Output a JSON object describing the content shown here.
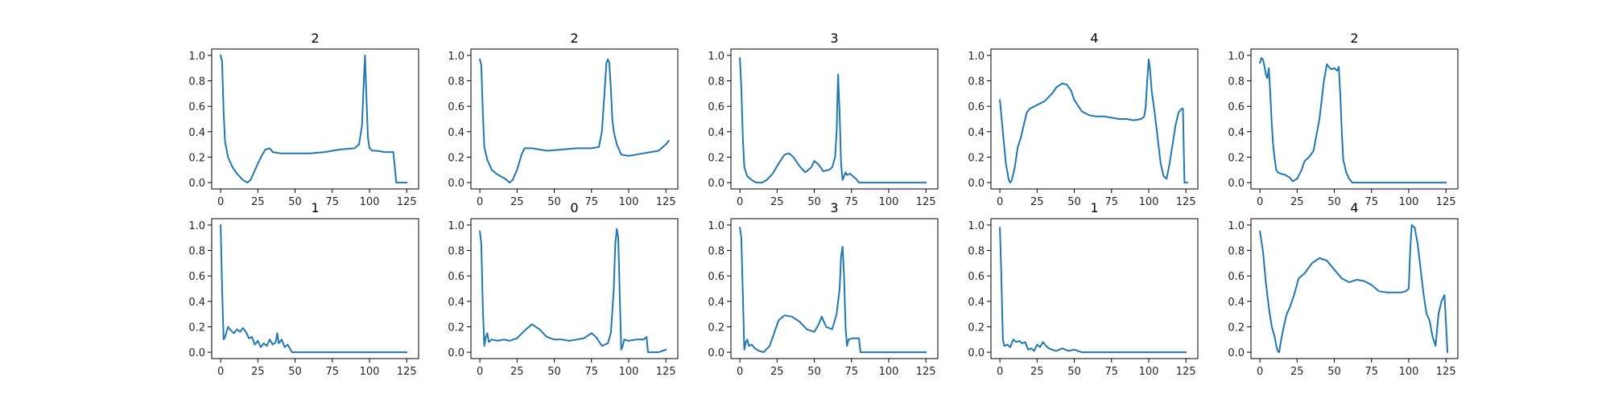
{
  "colors": {
    "line": "#1f77b4",
    "axes": "#000000",
    "background": "#ffffff"
  },
  "chart_data": [
    {
      "type": "line",
      "title": "2",
      "xlim": [
        -6,
        133
      ],
      "ylim": [
        -0.05,
        1.05
      ],
      "grid": false,
      "xticks": [
        0,
        25,
        50,
        75,
        100,
        125
      ],
      "yticks": [
        0.0,
        0.2,
        0.4,
        0.6,
        0.8,
        1.0
      ],
      "series": [
        {
          "x": [
            0,
            1,
            2,
            3,
            5,
            8,
            11,
            15,
            18,
            20,
            22,
            25,
            28,
            30,
            33,
            35,
            40,
            50,
            60,
            70,
            80,
            90,
            93,
            95,
            96,
            97,
            98,
            99,
            100,
            102,
            105,
            110,
            114,
            116,
            118,
            125
          ],
          "y": [
            1.0,
            0.95,
            0.55,
            0.32,
            0.2,
            0.12,
            0.07,
            0.02,
            0.0,
            0.02,
            0.07,
            0.15,
            0.22,
            0.26,
            0.27,
            0.24,
            0.23,
            0.23,
            0.23,
            0.24,
            0.26,
            0.27,
            0.3,
            0.45,
            0.75,
            1.0,
            0.65,
            0.35,
            0.27,
            0.25,
            0.25,
            0.24,
            0.24,
            0.24,
            0.0,
            0.0
          ]
        }
      ]
    },
    {
      "type": "line",
      "title": "2",
      "xlim": [
        -6,
        133
      ],
      "ylim": [
        -0.05,
        1.05
      ],
      "grid": false,
      "xticks": [
        0,
        25,
        50,
        75,
        100,
        125
      ],
      "yticks": [
        0.0,
        0.2,
        0.4,
        0.6,
        0.8,
        1.0
      ],
      "series": [
        {
          "x": [
            0,
            1,
            2,
            3,
            5,
            8,
            11,
            14,
            17,
            20,
            22,
            25,
            28,
            30,
            35,
            45,
            55,
            65,
            75,
            80,
            82,
            84,
            85,
            86,
            87,
            88,
            89,
            90,
            92,
            95,
            100,
            105,
            110,
            115,
            120,
            125,
            127
          ],
          "y": [
            0.97,
            0.92,
            0.55,
            0.28,
            0.18,
            0.1,
            0.07,
            0.05,
            0.03,
            0.0,
            0.02,
            0.1,
            0.22,
            0.27,
            0.27,
            0.25,
            0.26,
            0.27,
            0.27,
            0.28,
            0.4,
            0.75,
            0.94,
            0.97,
            0.94,
            0.75,
            0.5,
            0.4,
            0.3,
            0.22,
            0.21,
            0.22,
            0.23,
            0.24,
            0.25,
            0.3,
            0.33
          ]
        }
      ]
    },
    {
      "type": "line",
      "title": "3",
      "xlim": [
        -6,
        133
      ],
      "ylim": [
        -0.05,
        1.05
      ],
      "grid": false,
      "xticks": [
        0,
        25,
        50,
        75,
        100,
        125
      ],
      "yticks": [
        0.0,
        0.2,
        0.4,
        0.6,
        0.8,
        1.0
      ],
      "series": [
        {
          "x": [
            0,
            1,
            2,
            3,
            5,
            8,
            11,
            15,
            18,
            22,
            26,
            30,
            33,
            36,
            40,
            44,
            48,
            50,
            53,
            56,
            60,
            62,
            64,
            65,
            66,
            67,
            68,
            69,
            70,
            71,
            72,
            74,
            76,
            78,
            80,
            85,
            100,
            125
          ],
          "y": [
            0.98,
            0.75,
            0.35,
            0.12,
            0.05,
            0.02,
            0.0,
            0.0,
            0.02,
            0.07,
            0.15,
            0.22,
            0.23,
            0.2,
            0.13,
            0.08,
            0.12,
            0.17,
            0.14,
            0.09,
            0.1,
            0.12,
            0.2,
            0.4,
            0.85,
            0.55,
            0.15,
            0.02,
            0.05,
            0.08,
            0.06,
            0.07,
            0.05,
            0.03,
            0.0,
            0.0,
            0.0,
            0.0
          ]
        }
      ]
    },
    {
      "type": "line",
      "title": "4",
      "xlim": [
        -6,
        133
      ],
      "ylim": [
        -0.05,
        1.05
      ],
      "grid": false,
      "xticks": [
        0,
        25,
        50,
        75,
        100,
        125
      ],
      "yticks": [
        0.0,
        0.2,
        0.4,
        0.6,
        0.8,
        1.0
      ],
      "series": [
        {
          "x": [
            0,
            2,
            4,
            6,
            7,
            8,
            10,
            12,
            14,
            16,
            18,
            20,
            25,
            30,
            35,
            38,
            42,
            45,
            48,
            50,
            55,
            60,
            65,
            70,
            75,
            80,
            85,
            90,
            95,
            97,
            98,
            99,
            100,
            101,
            102,
            104,
            106,
            108,
            110,
            112,
            114,
            116,
            118,
            120,
            122,
            123,
            124,
            126
          ],
          "y": [
            0.65,
            0.4,
            0.15,
            0.02,
            0.0,
            0.02,
            0.12,
            0.28,
            0.35,
            0.45,
            0.55,
            0.58,
            0.61,
            0.64,
            0.7,
            0.75,
            0.78,
            0.77,
            0.72,
            0.65,
            0.56,
            0.53,
            0.52,
            0.52,
            0.51,
            0.5,
            0.5,
            0.49,
            0.5,
            0.52,
            0.6,
            0.8,
            0.97,
            0.88,
            0.72,
            0.55,
            0.35,
            0.15,
            0.05,
            0.03,
            0.15,
            0.3,
            0.45,
            0.55,
            0.58,
            0.58,
            0.0,
            0.0
          ]
        }
      ]
    },
    {
      "type": "line",
      "title": "2",
      "xlim": [
        -6,
        133
      ],
      "ylim": [
        -0.05,
        1.05
      ],
      "grid": false,
      "xticks": [
        0,
        25,
        50,
        75,
        100,
        125
      ],
      "yticks": [
        0.0,
        0.2,
        0.4,
        0.6,
        0.8,
        1.0
      ],
      "series": [
        {
          "x": [
            0,
            1,
            2,
            3,
            4,
            5,
            6,
            7,
            8,
            9,
            10,
            11,
            12,
            14,
            17,
            20,
            22,
            25,
            28,
            30,
            33,
            36,
            40,
            43,
            45,
            47,
            48,
            50,
            52,
            53,
            54,
            55,
            56,
            58,
            60,
            62,
            65,
            70,
            80,
            100,
            125
          ],
          "y": [
            0.94,
            0.98,
            0.97,
            0.92,
            0.85,
            0.82,
            0.9,
            0.7,
            0.45,
            0.28,
            0.18,
            0.1,
            0.08,
            0.07,
            0.06,
            0.04,
            0.01,
            0.03,
            0.1,
            0.17,
            0.2,
            0.25,
            0.5,
            0.8,
            0.93,
            0.9,
            0.89,
            0.9,
            0.88,
            0.91,
            0.7,
            0.4,
            0.18,
            0.08,
            0.03,
            0.0,
            0.0,
            0.0,
            0.0,
            0.0,
            0.0
          ]
        }
      ]
    },
    {
      "type": "line",
      "title": "1",
      "xlim": [
        -6,
        133
      ],
      "ylim": [
        -0.05,
        1.05
      ],
      "grid": false,
      "xticks": [
        0,
        25,
        50,
        75,
        100,
        125
      ],
      "yticks": [
        0.0,
        0.2,
        0.4,
        0.6,
        0.8,
        1.0
      ],
      "series": [
        {
          "x": [
            0,
            1,
            2,
            3,
            5,
            7,
            9,
            11,
            13,
            15,
            17,
            19,
            21,
            23,
            25,
            27,
            29,
            31,
            33,
            35,
            37,
            38,
            39,
            41,
            43,
            45,
            48,
            60,
            100,
            125
          ],
          "y": [
            1.0,
            0.5,
            0.1,
            0.12,
            0.2,
            0.17,
            0.15,
            0.18,
            0.16,
            0.19,
            0.16,
            0.11,
            0.12,
            0.06,
            0.09,
            0.04,
            0.07,
            0.05,
            0.1,
            0.06,
            0.08,
            0.15,
            0.07,
            0.1,
            0.04,
            0.06,
            0.0,
            0.0,
            0.0,
            0.0
          ]
        }
      ]
    },
    {
      "type": "line",
      "title": "0",
      "xlim": [
        -6,
        133
      ],
      "ylim": [
        -0.05,
        1.05
      ],
      "grid": false,
      "xticks": [
        0,
        25,
        50,
        75,
        100,
        125
      ],
      "yticks": [
        0.0,
        0.2,
        0.4,
        0.6,
        0.8,
        1.0
      ],
      "series": [
        {
          "x": [
            0,
            1,
            2,
            3,
            4,
            5,
            6,
            8,
            12,
            16,
            20,
            25,
            30,
            35,
            40,
            45,
            50,
            55,
            60,
            65,
            70,
            75,
            78,
            82,
            86,
            88,
            90,
            91,
            92,
            93,
            94,
            95,
            96,
            97,
            100,
            105,
            110,
            112,
            113,
            115,
            120,
            125
          ],
          "y": [
            0.95,
            0.85,
            0.35,
            0.05,
            0.12,
            0.15,
            0.08,
            0.1,
            0.09,
            0.1,
            0.09,
            0.11,
            0.17,
            0.22,
            0.18,
            0.12,
            0.1,
            0.1,
            0.09,
            0.1,
            0.11,
            0.15,
            0.12,
            0.05,
            0.07,
            0.15,
            0.5,
            0.85,
            0.97,
            0.9,
            0.45,
            0.02,
            0.05,
            0.1,
            0.09,
            0.1,
            0.1,
            0.12,
            0.0,
            0.0,
            0.0,
            0.02
          ]
        }
      ]
    },
    {
      "type": "line",
      "title": "3",
      "xlim": [
        -6,
        133
      ],
      "ylim": [
        -0.05,
        1.05
      ],
      "grid": false,
      "xticks": [
        0,
        25,
        50,
        75,
        100,
        125
      ],
      "yticks": [
        0.0,
        0.2,
        0.4,
        0.6,
        0.8,
        1.0
      ],
      "series": [
        {
          "x": [
            0,
            1,
            2,
            3,
            4,
            5,
            6,
            8,
            10,
            13,
            16,
            20,
            23,
            26,
            30,
            35,
            40,
            45,
            50,
            53,
            55,
            58,
            62,
            65,
            67,
            68,
            69,
            70,
            71,
            72,
            73,
            76,
            80,
            81,
            83,
            90,
            100,
            125
          ],
          "y": [
            0.98,
            0.9,
            0.45,
            0.02,
            0.08,
            0.1,
            0.05,
            0.06,
            0.03,
            0.01,
            0.0,
            0.05,
            0.15,
            0.25,
            0.29,
            0.28,
            0.24,
            0.18,
            0.16,
            0.22,
            0.28,
            0.2,
            0.18,
            0.3,
            0.5,
            0.75,
            0.83,
            0.6,
            0.2,
            0.05,
            0.1,
            0.11,
            0.11,
            0.0,
            0.0,
            0.0,
            0.0,
            0.0
          ]
        }
      ]
    },
    {
      "type": "line",
      "title": "1",
      "xlim": [
        -6,
        133
      ],
      "ylim": [
        -0.05,
        1.05
      ],
      "grid": false,
      "xticks": [
        0,
        25,
        50,
        75,
        100,
        125
      ],
      "yticks": [
        0.0,
        0.2,
        0.4,
        0.6,
        0.8,
        1.0
      ],
      "series": [
        {
          "x": [
            0,
            1,
            2,
            3,
            5,
            7,
            9,
            11,
            13,
            15,
            17,
            19,
            21,
            23,
            25,
            27,
            29,
            31,
            33,
            35,
            38,
            42,
            46,
            50,
            55,
            60,
            70,
            100,
            125
          ],
          "y": [
            0.98,
            0.6,
            0.1,
            0.05,
            0.06,
            0.04,
            0.1,
            0.08,
            0.09,
            0.07,
            0.08,
            0.02,
            0.03,
            0.01,
            0.06,
            0.04,
            0.08,
            0.05,
            0.03,
            0.02,
            0.01,
            0.03,
            0.01,
            0.02,
            0.0,
            0.0,
            0.0,
            0.0,
            0.0
          ]
        }
      ]
    },
    {
      "type": "line",
      "title": "4",
      "xlim": [
        -6,
        133
      ],
      "ylim": [
        -0.05,
        1.05
      ],
      "grid": false,
      "xticks": [
        0,
        25,
        50,
        75,
        100,
        125
      ],
      "yticks": [
        0.0,
        0.2,
        0.4,
        0.6,
        0.8,
        1.0
      ],
      "series": [
        {
          "x": [
            0,
            2,
            4,
            6,
            8,
            10,
            11,
            12,
            13,
            14,
            16,
            18,
            20,
            23,
            26,
            30,
            35,
            40,
            45,
            50,
            55,
            60,
            65,
            70,
            75,
            80,
            85,
            90,
            95,
            98,
            100,
            101,
            102,
            104,
            106,
            108,
            110,
            112,
            114,
            116,
            118,
            120,
            122,
            124,
            126
          ],
          "y": [
            0.95,
            0.8,
            0.55,
            0.35,
            0.2,
            0.12,
            0.05,
            0.01,
            0.0,
            0.08,
            0.2,
            0.3,
            0.35,
            0.45,
            0.58,
            0.62,
            0.7,
            0.74,
            0.72,
            0.65,
            0.58,
            0.55,
            0.57,
            0.56,
            0.53,
            0.48,
            0.47,
            0.47,
            0.47,
            0.48,
            0.5,
            0.8,
            1.0,
            0.98,
            0.85,
            0.65,
            0.45,
            0.3,
            0.25,
            0.12,
            0.05,
            0.3,
            0.4,
            0.45,
            0.0
          ]
        }
      ]
    }
  ]
}
